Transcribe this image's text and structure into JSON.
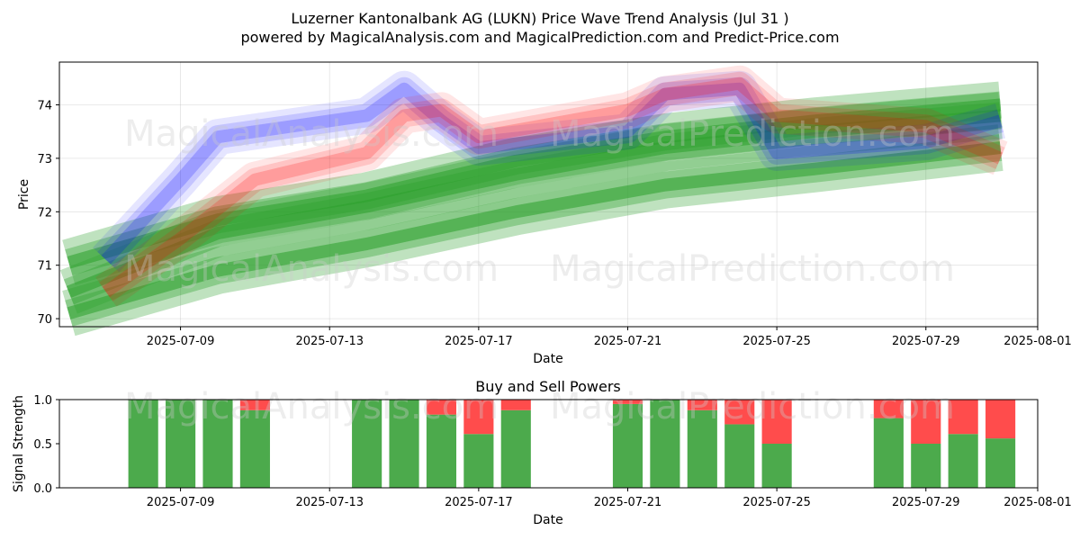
{
  "chart_data": [
    {
      "type": "area",
      "title": "Luzerner Kantonalbank AG (LUKN) Price Wave Trend Analysis (Jul 31 )",
      "subtitle": "powered by MagicalAnalysis.com and MagicalPrediction.com and Predict-Price.com",
      "xlabel": "Date",
      "ylabel": "Price",
      "ylim": [
        69.85,
        74.8
      ],
      "xlim": [
        "2025-07-05T18:00",
        "2025-08-01T00:00"
      ],
      "x_ticks": [
        "2025-07-09",
        "2025-07-13",
        "2025-07-17",
        "2025-07-21",
        "2025-07-25",
        "2025-07-29",
        "2025-08-01"
      ],
      "y_ticks": [
        70,
        71,
        72,
        73,
        74
      ],
      "grid": true,
      "watermarks": [
        "MagicalAnalysis.com",
        "MagicalPrediction.com"
      ],
      "series": [
        {
          "color": "#2ca02c",
          "style": "trend-channel",
          "x": [
            "2025-07-06",
            "2025-07-10",
            "2025-07-14",
            "2025-07-18",
            "2025-07-22",
            "2025-07-26",
            "2025-07-31"
          ],
          "values": [
            70.5,
            71.6,
            72.1,
            72.7,
            73.2,
            73.5,
            73.8
          ]
        },
        {
          "color": "#2ca02c",
          "style": "trend-channel",
          "x": [
            "2025-07-06",
            "2025-07-10",
            "2025-07-14",
            "2025-07-18",
            "2025-07-22",
            "2025-07-26",
            "2025-07-31"
          ],
          "values": [
            70.1,
            70.9,
            71.4,
            72.0,
            72.5,
            72.8,
            73.2
          ]
        },
        {
          "color": "#2ca02c",
          "style": "trend-channel",
          "x": [
            "2025-07-06",
            "2025-07-10",
            "2025-07-14",
            "2025-07-18",
            "2025-07-22",
            "2025-07-26",
            "2025-07-31"
          ],
          "values": [
            71.05,
            71.85,
            72.3,
            72.95,
            73.4,
            73.7,
            74.0
          ]
        },
        {
          "color": "#0000ff",
          "style": "wave",
          "x": [
            "2025-07-07",
            "2025-07-09",
            "2025-07-10",
            "2025-07-14",
            "2025-07-15",
            "2025-07-16",
            "2025-07-17",
            "2025-07-21",
            "2025-07-22",
            "2025-07-24",
            "2025-07-25",
            "2025-07-29",
            "2025-07-31"
          ],
          "values": [
            71.1,
            72.6,
            73.4,
            73.8,
            74.3,
            73.7,
            73.2,
            73.5,
            74.2,
            74.3,
            73.1,
            73.3,
            73.7
          ]
        },
        {
          "color": "#ff0000",
          "style": "wave",
          "x": [
            "2025-07-07",
            "2025-07-09",
            "2025-07-11",
            "2025-07-14",
            "2025-07-15",
            "2025-07-16",
            "2025-07-17",
            "2025-07-21",
            "2025-07-22",
            "2025-07-24",
            "2025-07-25",
            "2025-07-29",
            "2025-07-31"
          ],
          "values": [
            70.5,
            71.5,
            72.6,
            73.1,
            73.8,
            73.9,
            73.4,
            73.9,
            74.2,
            74.4,
            73.8,
            73.6,
            73.0
          ]
        }
      ]
    },
    {
      "type": "bar",
      "title": "Buy and Sell Powers",
      "xlabel": "Date",
      "ylabel": "Signal Strength",
      "ylim": [
        0,
        1
      ],
      "y_ticks": [
        "0.0",
        "0.5",
        "1.0"
      ],
      "x_ticks": [
        "2025-07-09",
        "2025-07-13",
        "2025-07-17",
        "2025-07-21",
        "2025-07-25",
        "2025-07-29",
        "2025-08-01"
      ],
      "categories": [
        "2025-07-08",
        "2025-07-09",
        "2025-07-10",
        "2025-07-11",
        "2025-07-14",
        "2025-07-15",
        "2025-07-16",
        "2025-07-17",
        "2025-07-18",
        "2025-07-21",
        "2025-07-22",
        "2025-07-23",
        "2025-07-24",
        "2025-07-25",
        "2025-07-28",
        "2025-07-29",
        "2025-07-30",
        "2025-07-31"
      ],
      "series": [
        {
          "color": "#4caa4c",
          "values": [
            1.0,
            1.0,
            1.0,
            0.88,
            1.0,
            1.0,
            0.83,
            0.61,
            0.88,
            0.95,
            1.0,
            0.88,
            0.72,
            0.5,
            0.79,
            0.5,
            0.61,
            0.56
          ]
        },
        {
          "color": "#ff4c4c",
          "values": [
            0.0,
            0.0,
            0.0,
            0.12,
            0.0,
            0.0,
            0.17,
            0.39,
            0.12,
            0.05,
            0.0,
            0.12,
            0.28,
            0.5,
            0.21,
            0.5,
            0.39,
            0.44
          ]
        }
      ]
    }
  ]
}
